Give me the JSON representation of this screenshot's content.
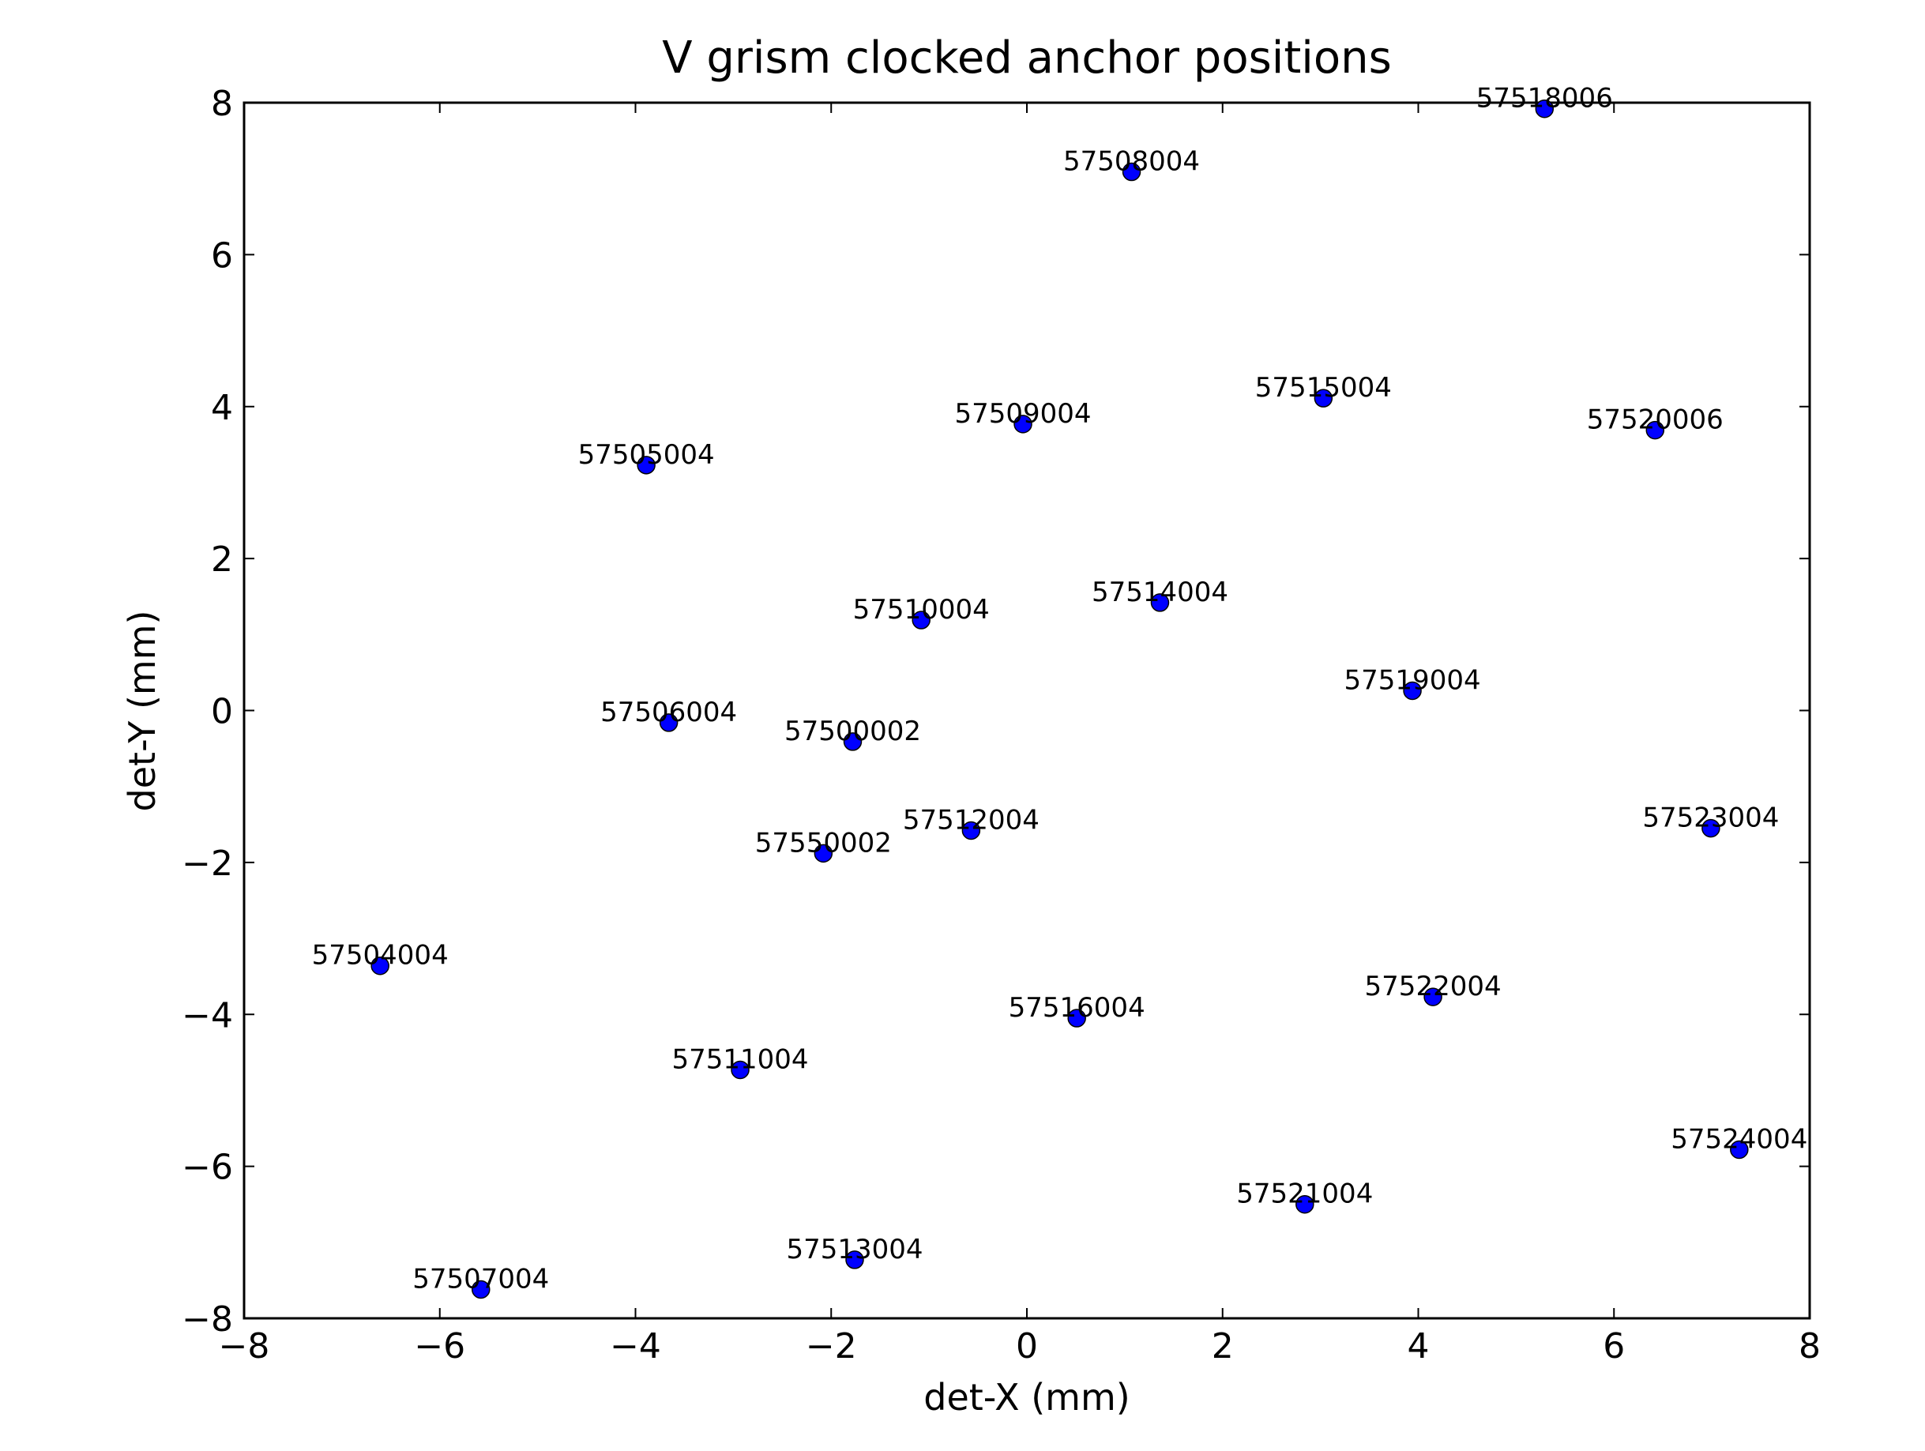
{
  "chart_data": {
    "type": "scatter",
    "title": "V grism clocked anchor positions",
    "x_label": "det-X (mm)",
    "y_label": "det-Y (mm)",
    "color": "#0000ff",
    "labels": [
      "57518006",
      "57508004",
      "57515004",
      "57520006",
      "57509004",
      "57505004",
      "57514004",
      "57510004",
      "57519004",
      "57506004",
      "57500002",
      "57512004",
      "57523004",
      "57550002",
      "57504004",
      "57522004",
      "57516004",
      "57511004",
      "57524004",
      "57521004",
      "57513004",
      "57507004"
    ],
    "x": [
      5.29,
      1.07,
      3.03,
      6.42,
      -0.04,
      -3.89,
      1.36,
      -1.08,
      3.94,
      -3.66,
      -1.78,
      -0.57,
      6.99,
      -2.08,
      -6.61,
      4.15,
      0.51,
      -2.93,
      7.28,
      2.84,
      -1.76,
      -5.58
    ],
    "values": [
      7.92,
      7.09,
      4.11,
      3.69,
      3.77,
      3.23,
      1.42,
      1.19,
      0.26,
      -0.16,
      -0.41,
      -1.58,
      -1.55,
      -1.88,
      -3.36,
      -3.77,
      -4.05,
      -4.73,
      -5.78,
      -6.5,
      -7.23,
      -7.62
    ],
    "xlim": [
      -8,
      8
    ],
    "ylim": [
      -8,
      8
    ],
    "xticks": [
      {
        "value": -8,
        "label": "−8"
      },
      {
        "value": -6,
        "label": "−6"
      },
      {
        "value": -4,
        "label": "−4"
      },
      {
        "value": -2,
        "label": "−2"
      },
      0,
      2,
      4,
      6,
      8
    ],
    "yticks": [
      {
        "value": -8,
        "label": "−8"
      },
      {
        "value": -6,
        "label": "−6"
      },
      {
        "value": -4,
        "label": "−4"
      },
      {
        "value": -2,
        "label": "−2"
      },
      0,
      2,
      4,
      6,
      8
    ]
  }
}
